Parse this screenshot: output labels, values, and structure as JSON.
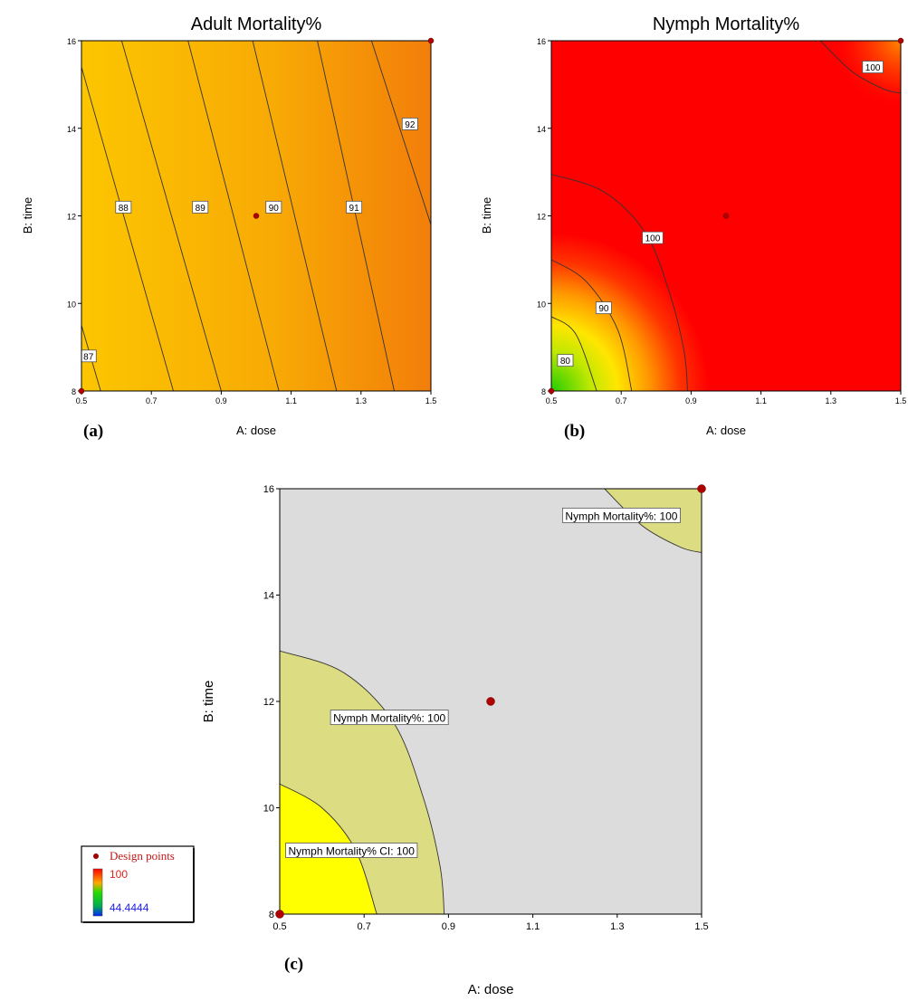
{
  "chart_data": [
    {
      "type": "contour",
      "panel_label": "(a)",
      "title": "Adult Mortality%",
      "xlabel": "A: dose",
      "ylabel": "B: time",
      "xlim": [
        0.5,
        1.5
      ],
      "ylim": [
        8,
        16
      ],
      "xticks": [
        "0.5",
        "0.7",
        "0.9",
        "1.1",
        "1.3",
        "1.5"
      ],
      "yticks": [
        "8",
        "10",
        "12",
        "14",
        "16"
      ],
      "color_range": [
        "#fcc600",
        "#f27e0a"
      ],
      "contours": [
        {
          "label": "87",
          "points": [
            [
              0.5,
              9.5
            ],
            [
              0.555,
              8
            ]
          ],
          "label_at": [
            0.52,
            8.8
          ]
        },
        {
          "label": "88",
          "points": [
            [
              0.5,
              15.4
            ],
            [
              0.763,
              8
            ]
          ],
          "label_at": [
            0.62,
            12.2
          ]
        },
        {
          "label": "89",
          "points": [
            [
              0.615,
              16
            ],
            [
              0.9,
              8
            ]
          ],
          "label_at": [
            0.84,
            12.2
          ]
        },
        {
          "label": "90",
          "points": [
            [
              0.805,
              16
            ],
            [
              1.065,
              8
            ]
          ],
          "label_at": [
            1.05,
            12.2
          ]
        },
        {
          "label": "91",
          "points": [
            [
              0.99,
              16
            ],
            [
              1.23,
              8
            ]
          ],
          "label_at": [
            1.28,
            12.2
          ]
        },
        {
          "label": "92",
          "points": [
            [
              1.175,
              16
            ],
            [
              1.395,
              8
            ]
          ],
          "label_at": [
            1.44,
            14.1
          ]
        },
        {
          "label": "",
          "points": [
            [
              1.33,
              16
            ],
            [
              1.5,
              11.8
            ]
          ],
          "label_at": null
        }
      ],
      "design_points": [
        [
          0.5,
          8
        ],
        [
          1.0,
          12
        ],
        [
          1.5,
          16
        ]
      ]
    },
    {
      "type": "contour",
      "panel_label": "(b)",
      "title": "Nymph Mortality%",
      "xlabel": "A: dose",
      "ylabel": "B: time",
      "xlim": [
        0.5,
        1.5
      ],
      "ylim": [
        8,
        16
      ],
      "xticks": [
        "0.5",
        "0.7",
        "0.9",
        "1.1",
        "1.3",
        "1.5"
      ],
      "yticks": [
        "8",
        "10",
        "12",
        "14",
        "16"
      ],
      "color_range": [
        "#22cc00",
        "#ff0000"
      ],
      "contours": [
        {
          "label": "100",
          "points": [
            [
              1.27,
              16
            ],
            [
              1.36,
              15.3
            ],
            [
              1.45,
              14.9
            ],
            [
              1.5,
              14.8
            ]
          ],
          "label_at": [
            1.42,
            15.4
          ]
        },
        {
          "label": "100",
          "points": [
            [
              0.5,
              12.95
            ],
            [
              0.65,
              12.55
            ],
            [
              0.77,
              11.6
            ],
            [
              0.84,
              10.2
            ],
            [
              0.88,
              8.9
            ],
            [
              0.89,
              8
            ]
          ],
          "label_at": [
            0.79,
            11.5
          ]
        },
        {
          "label": "90",
          "points": [
            [
              0.5,
              11.0
            ],
            [
              0.6,
              10.5
            ],
            [
              0.69,
              9.4
            ],
            [
              0.73,
              8
            ]
          ],
          "label_at": [
            0.65,
            9.9
          ]
        },
        {
          "label": "80",
          "points": [
            [
              0.5,
              9.7
            ],
            [
              0.57,
              9.3
            ],
            [
              0.63,
              8
            ]
          ],
          "label_at": [
            0.54,
            8.7
          ]
        }
      ],
      "design_points": [
        [
          0.5,
          8
        ],
        [
          1.0,
          12
        ],
        [
          1.5,
          16
        ]
      ]
    },
    {
      "type": "overlay",
      "panel_label": "(c)",
      "xlabel": "A: dose",
      "ylabel": "B: time",
      "xlim": [
        0.5,
        1.5
      ],
      "ylim": [
        8,
        16
      ],
      "xticks": [
        "0.5",
        "0.7",
        "0.9",
        "1.1",
        "1.3",
        "1.5"
      ],
      "yticks": [
        "8",
        "10",
        "12",
        "14",
        "16"
      ],
      "background": "#dcdcdc",
      "regions": [
        {
          "fill": "#dcdc82",
          "points": [
            [
              1.27,
              16
            ],
            [
              1.36,
              15.3
            ],
            [
              1.45,
              14.9
            ],
            [
              1.5,
              14.8
            ],
            [
              1.5,
              16
            ]
          ]
        },
        {
          "fill": "#dcdc82",
          "points": [
            [
              0.5,
              12.95
            ],
            [
              0.65,
              12.55
            ],
            [
              0.77,
              11.6
            ],
            [
              0.84,
              10.2
            ],
            [
              0.88,
              8.9
            ],
            [
              0.89,
              8
            ],
            [
              0.5,
              8
            ]
          ]
        },
        {
          "fill": "#ffff00",
          "points": [
            [
              0.5,
              10.45
            ],
            [
              0.6,
              10.0
            ],
            [
              0.68,
              9.2
            ],
            [
              0.73,
              8
            ],
            [
              0.5,
              8
            ]
          ]
        }
      ],
      "labels": [
        {
          "text": "Nymph Mortality%: 100",
          "at": [
            1.31,
            15.5
          ]
        },
        {
          "text": "Nymph Mortality%: 100",
          "at": [
            0.76,
            11.7
          ]
        },
        {
          "text": "Nymph Mortality% CI: 100",
          "at": [
            0.67,
            9.2
          ]
        }
      ],
      "design_points": [
        [
          0.5,
          8
        ],
        [
          1.0,
          12
        ],
        [
          1.5,
          16
        ]
      ]
    }
  ],
  "legend": {
    "design_points_label": "Design points",
    "max_label": "100",
    "min_label": "44.4444",
    "colors": {
      "marker": "#a00000",
      "max_text": "#e02020",
      "min_text": "#1a1aee"
    }
  }
}
